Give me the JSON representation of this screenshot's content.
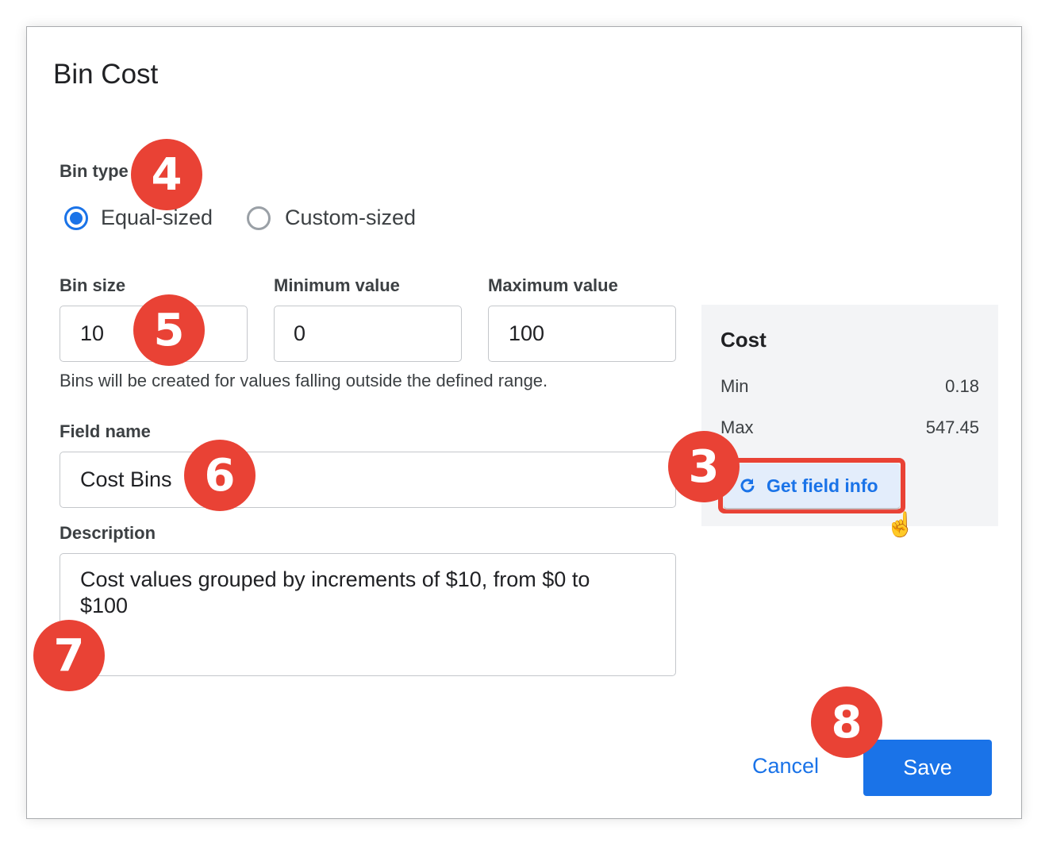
{
  "dialog": {
    "title": "Bin Cost"
  },
  "bin_type": {
    "label": "Bin type",
    "options": [
      {
        "label": "Equal-sized",
        "selected": true
      },
      {
        "label": "Custom-sized",
        "selected": false
      }
    ]
  },
  "range": {
    "bin_size_label": "Bin size",
    "bin_size": "10",
    "min_label": "Minimum value",
    "min": "0",
    "max_label": "Maximum value",
    "max": "100",
    "help": "Bins will be created for values falling outside the defined range."
  },
  "field_name": {
    "label": "Field name",
    "value": "Cost Bins"
  },
  "description": {
    "label": "Description",
    "value": "Cost values grouped by increments of $10, from $0 to $100"
  },
  "field_info": {
    "title": "Cost",
    "min_label": "Min",
    "min": "0.18",
    "max_label": "Max",
    "max": "547.45",
    "button": "Get field info",
    "icon": "refresh-icon"
  },
  "footer": {
    "cancel": "Cancel",
    "save": "Save"
  },
  "badges": [
    "3",
    "4",
    "5",
    "6",
    "7",
    "8"
  ],
  "colors": {
    "accent": "#1a73e8",
    "badge": "#e94235",
    "panel": "#f3f4f6"
  }
}
